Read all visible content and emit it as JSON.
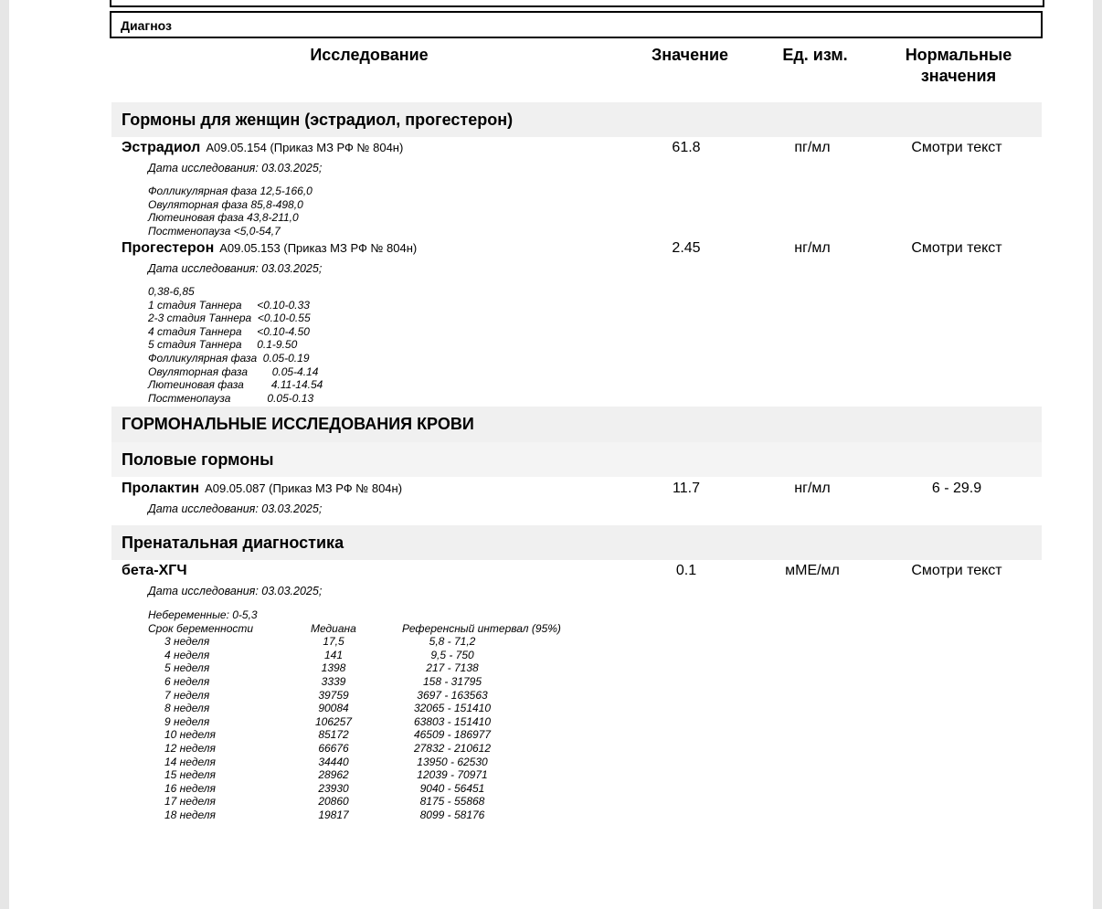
{
  "diagnosis_label": "Диагноз",
  "headers": {
    "study": "Исследование",
    "value": "Значение",
    "unit": "Ед. изм.",
    "norm_line1": "Нормальные",
    "norm_line2": "значения"
  },
  "sections": {
    "women_hormones": "Гормоны для женщин  (эстрадиол, прогестерон)",
    "blood_hormonal": "ГОРМОНАЛЬНЫЕ ИССЛЕДОВАНИЯ КРОВИ",
    "sex_hormones": "Половые гормоны",
    "prenatal": "Пренатальная диагностика"
  },
  "tests": {
    "estradiol": {
      "name": "Эстрадиол",
      "code": "A09.05.154 (Приказ МЗ РФ № 804н)",
      "date": "Дата исследования: 03.03.2025;",
      "value": "61.8",
      "unit": "пг/мл",
      "norm": "Смотри текст",
      "refs": [
        "Фолликулярная фаза 12,5-166,0",
        "Овуляторная фаза 85,8-498,0",
        "Лютеиновая фаза 43,8-211,0",
        "Постменопауза <5,0-54,7"
      ]
    },
    "progesterone": {
      "name": "Прогестерон",
      "code": "A09.05.153 (Приказ МЗ РФ № 804н)",
      "date": "Дата исследования: 03.03.2025;",
      "value": "2.45",
      "unit": "нг/мл",
      "norm": "Смотри текст",
      "refs": [
        "0,38-6,85",
        "1 стадия Таннера     <0.10-0.33",
        "2-3 стадия Таннера  <0.10-0.55",
        "4 стадия Таннера     <0.10-4.50",
        "5 стадия Таннера     0.1-9.50",
        "Фолликулярная фаза  0.05-0.19",
        "Овуляторная фаза        0.05-4.14",
        "Лютеиновая фаза         4.11-14.54",
        "Постменопауза            0.05-0.13"
      ]
    },
    "prolactin": {
      "name": "Пролактин",
      "code": "A09.05.087 (Приказ МЗ РФ № 804н)",
      "date": "Дата исследования: 03.03.2025;",
      "value": "11.7",
      "unit": "нг/мл",
      "norm": "6 - 29.9"
    },
    "hcg": {
      "name": "бета-ХГЧ",
      "date": "Дата исследования: 03.03.2025;",
      "value": "0.1",
      "unit": "мМЕ/мл",
      "norm": "Смотри текст",
      "non_pregnant": "Небеременные: 0-5,3",
      "columns": [
        "Срок беременности",
        "Медиана",
        "Референсный интервал (95%)"
      ],
      "rows": [
        [
          "3 неделя",
          "17,5",
          "5,8 - 71,2"
        ],
        [
          "4 неделя",
          "141",
          "9,5 - 750"
        ],
        [
          "5 неделя",
          "1398",
          "217 - 7138"
        ],
        [
          "6 неделя",
          "3339",
          "158 - 31795"
        ],
        [
          "7 неделя",
          "39759",
          "3697 - 163563"
        ],
        [
          "8 неделя",
          "90084",
          "32065 - 151410"
        ],
        [
          "9 неделя",
          "106257",
          "63803 - 151410"
        ],
        [
          "10 неделя",
          "85172",
          "46509 - 186977"
        ],
        [
          "12 неделя",
          "66676",
          "27832 - 210612"
        ],
        [
          "14 неделя",
          "34440",
          "13950 - 62530"
        ],
        [
          "15 неделя",
          "28962",
          "12039 - 70971"
        ],
        [
          "16 неделя",
          "23930",
          "9040 - 56451"
        ],
        [
          "17 неделя",
          "20860",
          "8175 - 55868"
        ],
        [
          "18 неделя",
          "19817",
          "8099 - 58176"
        ]
      ]
    }
  }
}
